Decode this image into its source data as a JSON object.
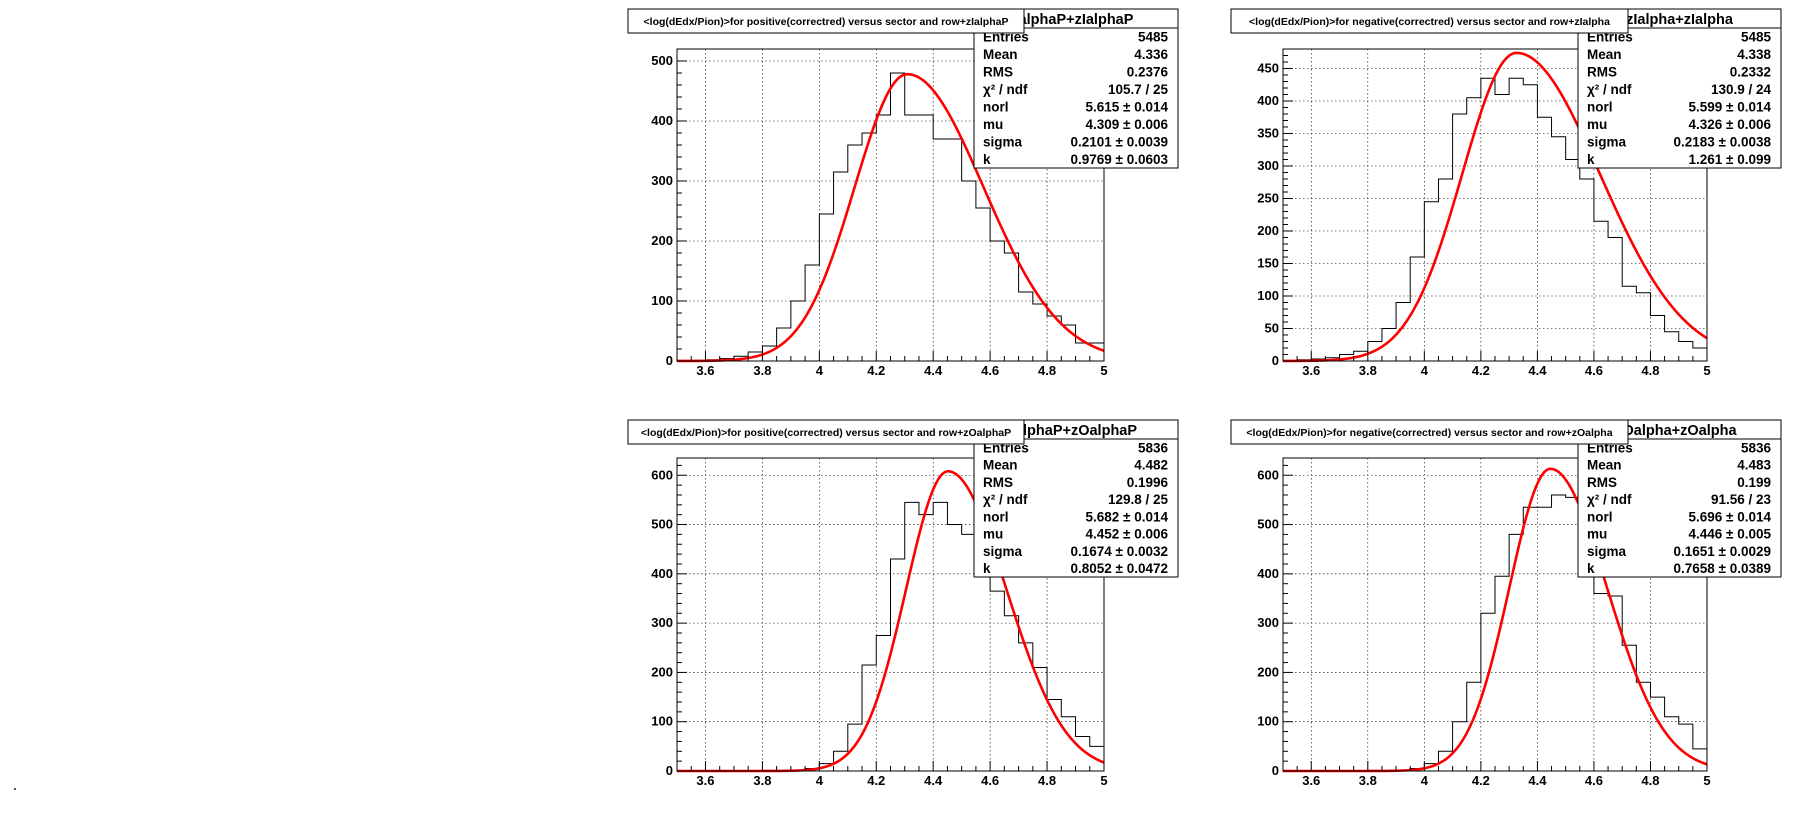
{
  "chart_data": [
    {
      "type": "bar",
      "title": "<log(dEdx/Pion)>for positive(correctred) versus sector and row+zIalphaP",
      "stats_title": "alphaP+zIalphaP",
      "xlim": [
        3.5,
        5.0
      ],
      "ylim": [
        0,
        520
      ],
      "x_ticks": [
        "3.6",
        "3.8",
        "4",
        "4.2",
        "4.4",
        "4.6",
        "4.8",
        "5"
      ],
      "y_ticks": [
        "0",
        "100",
        "200",
        "300",
        "400",
        "500"
      ],
      "x_tick_values": [
        3.6,
        3.8,
        4.0,
        4.2,
        4.4,
        4.6,
        4.8,
        5.0
      ],
      "y_tick_values": [
        0,
        100,
        200,
        300,
        400,
        500
      ],
      "grid": true,
      "histogram": {
        "bin_edges": [
          3.5,
          3.55,
          3.6,
          3.65,
          3.7,
          3.75,
          3.8,
          3.85,
          3.9,
          3.95,
          4.0,
          4.05,
          4.1,
          4.15,
          4.2,
          4.25,
          4.3,
          4.35,
          4.4,
          4.45,
          4.5,
          4.55,
          4.6,
          4.65,
          4.7,
          4.75,
          4.8,
          4.85,
          4.9,
          4.95,
          5.0
        ],
        "values": [
          0,
          1,
          2,
          4,
          8,
          15,
          25,
          55,
          100,
          160,
          245,
          315,
          360,
          380,
          410,
          480,
          410,
          410,
          370,
          370,
          300,
          255,
          200,
          180,
          115,
          95,
          75,
          60,
          30,
          30
        ]
      },
      "fit": {
        "mu": 4.309,
        "sigma": 0.2101,
        "peak": 478,
        "k": 0.9769
      },
      "stats": [
        {
          "label": "Entries",
          "value": "5485"
        },
        {
          "label": "Mean",
          "value": "4.336"
        },
        {
          "label": "RMS",
          "value": "0.2376"
        },
        {
          "label": "χ² / ndf",
          "value": "105.7 / 25"
        },
        {
          "label": "norl",
          "value": "5.615 ± 0.014"
        },
        {
          "label": "mu",
          "value": "4.309 ± 0.006"
        },
        {
          "label": "sigma",
          "value": "0.2101 ± 0.0039"
        },
        {
          "label": "k",
          "value": "0.9769 ± 0.0603"
        }
      ]
    },
    {
      "type": "bar",
      "title": "<log(dEdx/Pion)>for negative(correctred) versus sector and row+zIalpha",
      "stats_title": "zIalpha+zIalpha",
      "xlim": [
        3.5,
        5.0
      ],
      "ylim": [
        0,
        480
      ],
      "x_ticks": [
        "3.6",
        "3.8",
        "4",
        "4.2",
        "4.4",
        "4.6",
        "4.8",
        "5"
      ],
      "y_ticks": [
        "0",
        "50",
        "100",
        "150",
        "200",
        "250",
        "300",
        "350",
        "400",
        "450"
      ],
      "x_tick_values": [
        3.6,
        3.8,
        4.0,
        4.2,
        4.4,
        4.6,
        4.8,
        5.0
      ],
      "y_tick_values": [
        0,
        50,
        100,
        150,
        200,
        250,
        300,
        350,
        400,
        450
      ],
      "grid": true,
      "histogram": {
        "bin_edges": [
          3.5,
          3.55,
          3.6,
          3.65,
          3.7,
          3.75,
          3.8,
          3.85,
          3.9,
          3.95,
          4.0,
          4.05,
          4.1,
          4.15,
          4.2,
          4.25,
          4.3,
          4.35,
          4.4,
          4.45,
          4.5,
          4.55,
          4.6,
          4.65,
          4.7,
          4.75,
          4.8,
          4.85,
          4.9,
          4.95,
          5.0
        ],
        "values": [
          0,
          2,
          3,
          5,
          10,
          15,
          30,
          50,
          90,
          160,
          245,
          280,
          380,
          405,
          435,
          410,
          435,
          425,
          375,
          345,
          310,
          280,
          215,
          190,
          115,
          105,
          70,
          45,
          30,
          20
        ]
      },
      "fit": {
        "mu": 4.326,
        "sigma": 0.2183,
        "peak": 474,
        "k": 1.261
      },
      "stats": [
        {
          "label": "Entries",
          "value": "5485"
        },
        {
          "label": "Mean",
          "value": "4.338"
        },
        {
          "label": "RMS",
          "value": "0.2332"
        },
        {
          "label": "χ² / ndf",
          "value": "130.9 / 24"
        },
        {
          "label": "norl",
          "value": "5.599 ± 0.014"
        },
        {
          "label": "mu",
          "value": "4.326 ± 0.006"
        },
        {
          "label": "sigma",
          "value": "0.2183 ± 0.0038"
        },
        {
          "label": "k",
          "value": "1.261 ± 0.099"
        }
      ]
    },
    {
      "type": "bar",
      "title": "<log(dEdx/Pion)>for positive(correctred) versus sector and row+zOalphaP",
      "stats_title": "alphaP+zOalphaP",
      "xlim": [
        3.5,
        5.0
      ],
      "ylim": [
        0,
        635
      ],
      "x_ticks": [
        "3.6",
        "3.8",
        "4",
        "4.2",
        "4.4",
        "4.6",
        "4.8",
        "5"
      ],
      "y_ticks": [
        "0",
        "100",
        "200",
        "300",
        "400",
        "500",
        "600"
      ],
      "x_tick_values": [
        3.6,
        3.8,
        4.0,
        4.2,
        4.4,
        4.6,
        4.8,
        5.0
      ],
      "y_tick_values": [
        0,
        100,
        200,
        300,
        400,
        500,
        600
      ],
      "grid": true,
      "histogram": {
        "bin_edges": [
          3.5,
          3.55,
          3.6,
          3.65,
          3.7,
          3.75,
          3.8,
          3.85,
          3.9,
          3.95,
          4.0,
          4.05,
          4.1,
          4.15,
          4.2,
          4.25,
          4.3,
          4.35,
          4.4,
          4.45,
          4.5,
          4.55,
          4.6,
          4.65,
          4.7,
          4.75,
          4.8,
          4.85,
          4.9,
          4.95,
          5.0
        ],
        "values": [
          0,
          0,
          0,
          0,
          0,
          0,
          0,
          0,
          2,
          5,
          15,
          40,
          95,
          215,
          275,
          430,
          545,
          520,
          545,
          500,
          480,
          415,
          365,
          315,
          260,
          210,
          145,
          110,
          70,
          50
        ]
      },
      "fit": {
        "mu": 4.452,
        "sigma": 0.1674,
        "peak": 608,
        "k": 0.8052
      },
      "stats": [
        {
          "label": "Entries",
          "value": "5836"
        },
        {
          "label": "Mean",
          "value": "4.482"
        },
        {
          "label": "RMS",
          "value": "0.1996"
        },
        {
          "label": "χ² / ndf",
          "value": "129.8 / 25"
        },
        {
          "label": "norl",
          "value": "5.682 ± 0.014"
        },
        {
          "label": "mu",
          "value": "4.452 ± 0.006"
        },
        {
          "label": "sigma",
          "value": "0.1674 ± 0.0032"
        },
        {
          "label": "k",
          "value": "0.8052 ± 0.0472"
        }
      ]
    },
    {
      "type": "bar",
      "title": "<log(dEdx/Pion)>for negative(correctred) versus sector and row+zOalpha",
      "stats_title": "Oalpha+zOalpha",
      "xlim": [
        3.5,
        5.0
      ],
      "ylim": [
        0,
        635
      ],
      "x_ticks": [
        "3.6",
        "3.8",
        "4",
        "4.2",
        "4.4",
        "4.6",
        "4.8",
        "5"
      ],
      "y_ticks": [
        "0",
        "100",
        "200",
        "300",
        "400",
        "500",
        "600"
      ],
      "x_tick_values": [
        3.6,
        3.8,
        4.0,
        4.2,
        4.4,
        4.6,
        4.8,
        5.0
      ],
      "y_tick_values": [
        0,
        100,
        200,
        300,
        400,
        500,
        600
      ],
      "grid": true,
      "histogram": {
        "bin_edges": [
          3.5,
          3.55,
          3.6,
          3.65,
          3.7,
          3.75,
          3.8,
          3.85,
          3.9,
          3.95,
          4.0,
          4.05,
          4.1,
          4.15,
          4.2,
          4.25,
          4.3,
          4.35,
          4.4,
          4.45,
          4.5,
          4.55,
          4.6,
          4.65,
          4.7,
          4.75,
          4.8,
          4.85,
          4.9,
          4.95,
          5.0
        ],
        "values": [
          0,
          0,
          0,
          0,
          0,
          0,
          0,
          0,
          2,
          5,
          15,
          40,
          100,
          180,
          320,
          395,
          480,
          535,
          535,
          560,
          555,
          450,
          360,
          355,
          255,
          180,
          150,
          110,
          95,
          45
        ]
      },
      "fit": {
        "mu": 4.446,
        "sigma": 0.1651,
        "peak": 613,
        "k": 0.7658
      },
      "stats": [
        {
          "label": "Entries",
          "value": "5836"
        },
        {
          "label": "Mean",
          "value": "4.483"
        },
        {
          "label": "RMS",
          "value": "0.199"
        },
        {
          "label": "χ² / ndf",
          "value": "91.56 / 23"
        },
        {
          "label": "norl",
          "value": "5.696 ± 0.014"
        },
        {
          "label": "mu",
          "value": "4.446 ± 0.005"
        },
        {
          "label": "sigma",
          "value": "0.1651 ± 0.0029"
        },
        {
          "label": "k",
          "value": "0.7658 ± 0.0389"
        }
      ]
    }
  ],
  "colors": {
    "histogram": "#000000",
    "fit": "#ff0000",
    "grid": "#000000",
    "frame": "#000000"
  }
}
